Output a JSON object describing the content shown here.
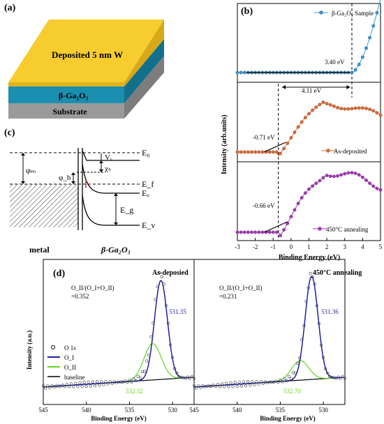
{
  "panels": {
    "a": {
      "label": "(a)",
      "top_layer_text": "Deposited 5 nm W",
      "mid_layer_text": "β-Ga₂O₃",
      "bottom_layer_text": "Substrate",
      "colors": {
        "w_layer": "#f7cc2e",
        "ga_layer": "#1a8fb0",
        "substrate": "#a6a6a6"
      }
    },
    "b": {
      "label": "(b)",
      "ylabel": "Intensity (arb.units)",
      "xlabel": "Binding Energy (eV)",
      "xticks": [
        "-3",
        "-2",
        "-1",
        "0",
        "1",
        "2",
        "3",
        "4",
        "5"
      ],
      "annotation_340": "3.40 eV",
      "annotation_411": "4.11 eV",
      "annotation_071": "-0.71 eV",
      "annotation_066": "-0.66 eV",
      "legend_top": "β-Ga₂O₃ Sample",
      "legend_mid": "As-deposited",
      "legend_bot": "450°C annealing",
      "colors": {
        "top": "#2c9be0",
        "mid": "#f0682a",
        "bot": "#b12fc4"
      }
    },
    "c": {
      "label": "(c)",
      "E0": "E₀",
      "Vi": "Vᵢ",
      "chi": "χₛ",
      "phi_m": "φₘ",
      "phi_b": "φ_b",
      "Ec": "E꜀",
      "Ef": "E_f",
      "Eg": "E_g",
      "Ev": "E_v",
      "metal_label": "metal",
      "ga_label": "β-Ga₂O₃"
    },
    "d": {
      "label": "(d)",
      "ylabel": "Intensity (a.u.)",
      "xlabel_left": "Binding Energy (eV)",
      "xlabel_right": "Binding Energy (eV)",
      "xticks_left": [
        "545",
        "540",
        "535",
        "530"
      ],
      "xticks_right": [
        "545",
        "540",
        "535",
        "530"
      ],
      "left_title": "As-deposied",
      "right_title": "450°C annealing",
      "left_ratio_label": "O_II/(O_I+O_II)",
      "left_ratio_value": "=0.352",
      "right_ratio_label": "O_II/(O_I+O_II)",
      "right_ratio_value": "=0.231",
      "left_peak1": "531.35",
      "left_peak2": "532.32",
      "right_peak1": "531.36",
      "right_peak2": "532.70",
      "legend": [
        "O 1s",
        "O_I",
        "O_II",
        "baseline"
      ],
      "colors": {
        "oi": "#1f1f9e",
        "oii": "#5fd41e",
        "baseline": "#000000",
        "peak1_text": "#1f1f9e",
        "peak2_text": "#5fd41e"
      }
    }
  }
}
